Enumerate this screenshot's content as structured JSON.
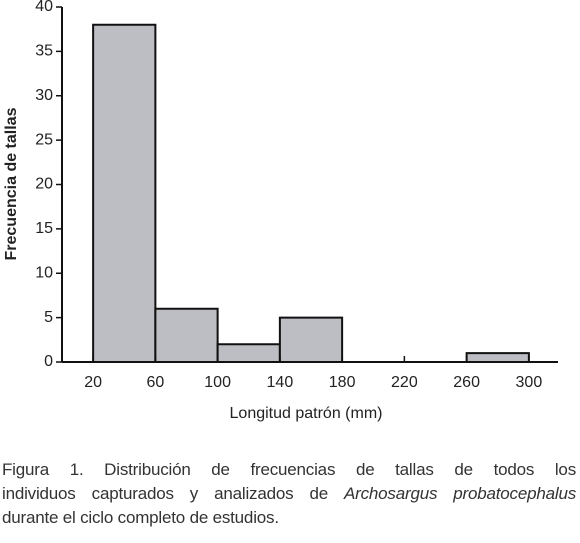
{
  "chart_data": {
    "type": "histogram",
    "x_label": "Longitud patrón (mm)",
    "y_label": "Frecuencia de tallas",
    "bins": [
      20,
      60,
      100,
      140,
      180,
      220,
      260,
      300
    ],
    "counts": [
      38,
      6,
      2,
      5,
      0,
      0,
      1
    ],
    "color": "#bdbdc4",
    "xlim": [
      0,
      320
    ],
    "xticks": [
      20,
      60,
      100,
      140,
      180,
      220,
      260,
      300
    ],
    "ylim": [
      0,
      40
    ],
    "yticks": [
      0,
      5,
      10,
      15,
      20,
      25,
      30,
      35,
      40
    ],
    "grid": false
  },
  "caption": {
    "line1": "Figura 1. Distribución de frecuencias de tallas de todos los",
    "line2": "individuos capturados y analizados de",
    "line2_species": "Archosargus probatocephalus",
    "line3": "durante el ciclo completo de estudios."
  }
}
